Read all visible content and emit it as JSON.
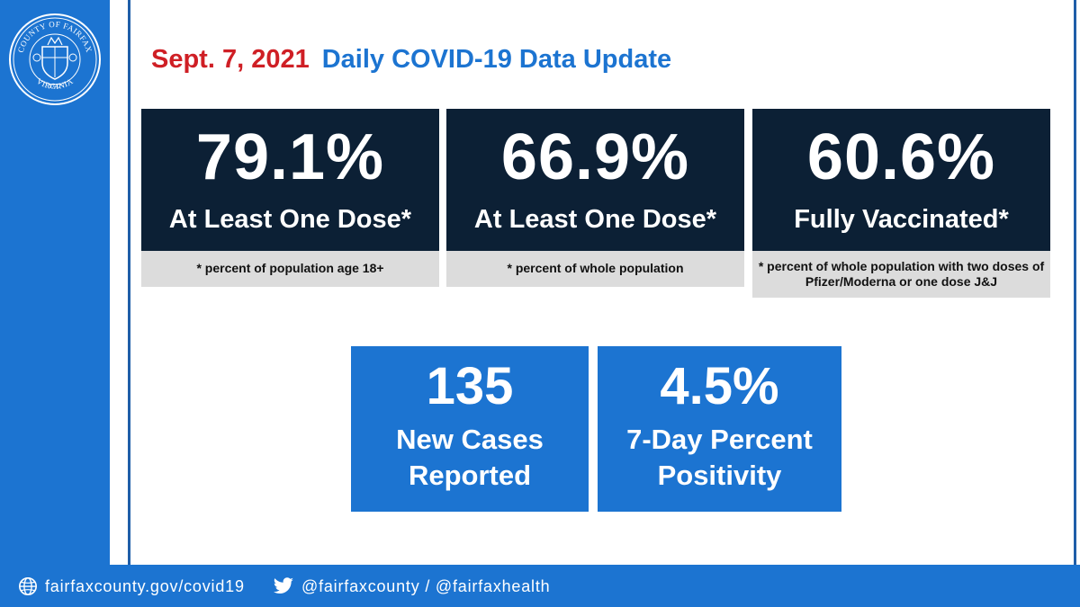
{
  "seal": {
    "top_text": "COUNTY OF FAIRFAX",
    "bottom_text": "VIRGINIA",
    "year": "1742"
  },
  "header": {
    "date": "Sept. 7, 2021",
    "title": "Daily COVID-19 Data Update"
  },
  "vaccination": [
    {
      "value": "79.1%",
      "label": "At Least One Dose*",
      "note": "* percent of population age 18+"
    },
    {
      "value": "66.9%",
      "label": "At Least One Dose*",
      "note": "* percent of whole population"
    },
    {
      "value": "60.6%",
      "label": "Fully Vaccinated*",
      "note": "* percent of whole population with two doses of Pfizer/Moderna or one dose J&J"
    }
  ],
  "cases": {
    "value": "135",
    "label_line1": "New Cases",
    "label_line2": "Reported"
  },
  "positivity": {
    "value": "4.5%",
    "label_line1": "7-Day Percent",
    "label_line2": "Positivity"
  },
  "footer": {
    "website": "fairfaxcounty.gov/covid19",
    "website_icon": "globe-icon",
    "social": "@fairfaxcounty / @fairfaxhealth",
    "social_icon": "twitter-bird-icon"
  },
  "colors": {
    "primary_blue": "#1c74d1",
    "navy": "#0c2035",
    "date_red": "#cf1f25",
    "note_gray": "#dcdcdc"
  }
}
